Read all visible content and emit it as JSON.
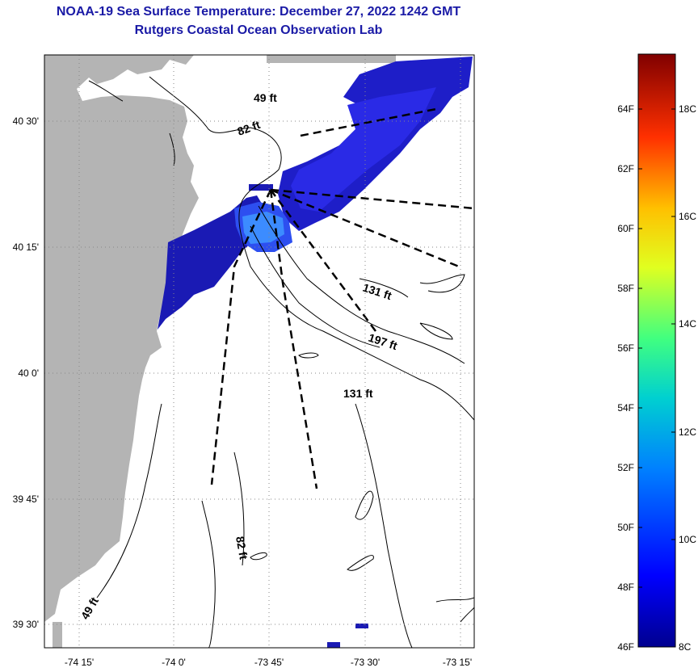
{
  "title": {
    "line1": "NOAA-19 Sea Surface Temperature:  December 27, 2022 1242 GMT",
    "line2": "Rutgers Coastal Ocean Observation Lab"
  },
  "axes": {
    "lat_labels": [
      "40 30'",
      "40 15'",
      "40 0'",
      "39 45'",
      "39 30'"
    ],
    "lon_labels": [
      "-74 15'",
      "-74 0'",
      "-73 45'",
      "-73 30'",
      "-73 15'"
    ]
  },
  "depth_labels": [
    "49 ft",
    "82 ft",
    "131 ft",
    "197 ft",
    "131 ft",
    "82 ft",
    "49 ft"
  ],
  "colorbar": {
    "f_labels": [
      "64F",
      "62F",
      "60F",
      "58F",
      "56F",
      "54F",
      "52F",
      "50F",
      "48F",
      "46F"
    ],
    "c_labels": [
      "18C",
      "16C",
      "14C",
      "12C",
      "10C",
      "8C"
    ]
  },
  "colors": {
    "title": "#1a1aa6",
    "land": "#b4b4b4",
    "sst_dark": "#1a1ab4",
    "sst_mid": "#1e2de6",
    "sst_light": "#3296ff"
  }
}
